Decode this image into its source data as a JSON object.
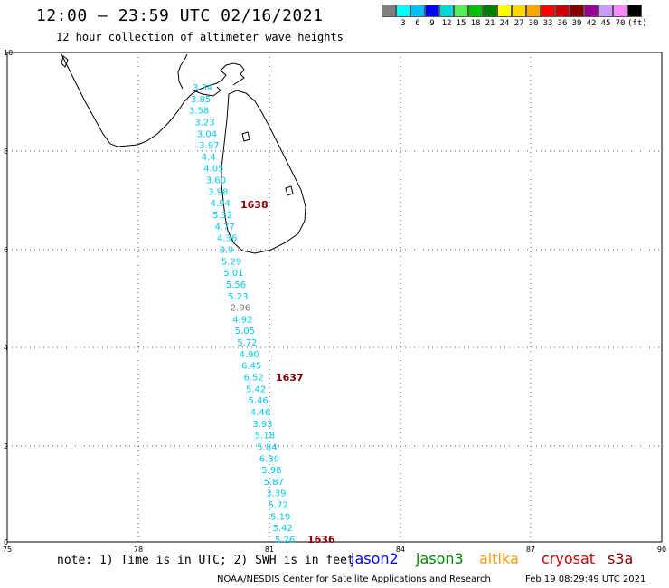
{
  "header": {
    "title": "12:00 – 23:59 UTC 02/16/2021",
    "subtitle": "12 hour collection of altimeter wave heights"
  },
  "legend": {
    "colors": [
      "#808080",
      "#00ffff",
      "#00bfff",
      "#0000ff",
      "#00d8d8",
      "#55ee55",
      "#00c000",
      "#008000",
      "#ffff00",
      "#ffd700",
      "#ffa500",
      "#ff0000",
      "#cc0000",
      "#880000",
      "#990099",
      "#cc99ff",
      "#ff88ff",
      "#000000"
    ],
    "labels": [
      "3",
      "6",
      "9",
      "12",
      "15",
      "18",
      "21",
      "24",
      "27",
      "30",
      "33",
      "36",
      "39",
      "42",
      "45",
      "70",
      "(ft)"
    ]
  },
  "map": {
    "lat_labels": [
      "10",
      "8",
      "6",
      "4",
      "2",
      "0"
    ],
    "lon_labels": [
      "75",
      "78",
      "81",
      "84",
      "87",
      "90"
    ],
    "track_times": [
      {
        "label": "1638",
        "color": "#800000"
      },
      {
        "label": "1637",
        "color": "#800000"
      },
      {
        "label": "1636",
        "color": "#800000"
      }
    ],
    "wave_heights": [
      {
        "value": "3.34",
        "color": "#00ccee"
      },
      {
        "value": "3.85",
        "color": "#00ccee"
      },
      {
        "value": "3.58",
        "color": "#00ccee"
      },
      {
        "value": "3.23",
        "color": "#00ccee"
      },
      {
        "value": "3.04",
        "color": "#00ccee"
      },
      {
        "value": "3.97",
        "color": "#00ccee"
      },
      {
        "value": "4.4",
        "color": "#00ccee"
      },
      {
        "value": "4.05",
        "color": "#00ccee"
      },
      {
        "value": "3.60",
        "color": "#00ccee"
      },
      {
        "value": "3.98",
        "color": "#00ccee"
      },
      {
        "value": "4.94",
        "color": "#00ccee"
      },
      {
        "value": "5.32",
        "color": "#00ccee"
      },
      {
        "value": "4.77",
        "color": "#00ccee"
      },
      {
        "value": "4.36",
        "color": "#00ccee"
      },
      {
        "value": "3.9",
        "color": "#00ccee"
      },
      {
        "value": "5.29",
        "color": "#00ccee"
      },
      {
        "value": "5.01",
        "color": "#00ccee"
      },
      {
        "value": "5.56",
        "color": "#00ccee"
      },
      {
        "value": "5.23",
        "color": "#00ccee"
      },
      {
        "value": "2.96",
        "color": "#777777"
      },
      {
        "value": "4.92",
        "color": "#00ccee"
      },
      {
        "value": "5.05",
        "color": "#00ccee"
      },
      {
        "value": "5.72",
        "color": "#00ccee"
      },
      {
        "value": "4.90",
        "color": "#00ccee"
      },
      {
        "value": "6.45",
        "color": "#00ccee"
      },
      {
        "value": "6.52",
        "color": "#00ccee"
      },
      {
        "value": "5.42",
        "color": "#00ccee"
      },
      {
        "value": "5.46",
        "color": "#00ccee"
      },
      {
        "value": "4.46",
        "color": "#00ccee"
      },
      {
        "value": "3.93",
        "color": "#00ccee"
      },
      {
        "value": "5.18",
        "color": "#00ccee"
      },
      {
        "value": "5.84",
        "color": "#00ccee"
      },
      {
        "value": "6.30",
        "color": "#00ccee"
      },
      {
        "value": "5.98",
        "color": "#00ccee"
      },
      {
        "value": "5.87",
        "color": "#00ccee"
      },
      {
        "value": "3.39",
        "color": "#00ccee"
      },
      {
        "value": "5.72",
        "color": "#00ccee"
      },
      {
        "value": "5.19",
        "color": "#00ccee"
      },
      {
        "value": "5.42",
        "color": "#00ccee"
      },
      {
        "value": "5.26",
        "color": "#00ccee"
      }
    ]
  },
  "footer": {
    "note": "note: 1) Time is in UTC; 2) SWH is in feet",
    "satellites": [
      {
        "name": "jason2",
        "color": "#0000ff"
      },
      {
        "name": "jason3",
        "color": "#008800"
      },
      {
        "name": "altika",
        "color": "#ff9900"
      },
      {
        "name": "cryosat",
        "color": "#cc0000"
      },
      {
        "name": "s3a",
        "color": "#880000"
      }
    ],
    "credit": "NOAA/NESDIS Center for Satellite Applications and Research",
    "timestamp": "Feb 19 08:29:49 UTC 2021"
  }
}
